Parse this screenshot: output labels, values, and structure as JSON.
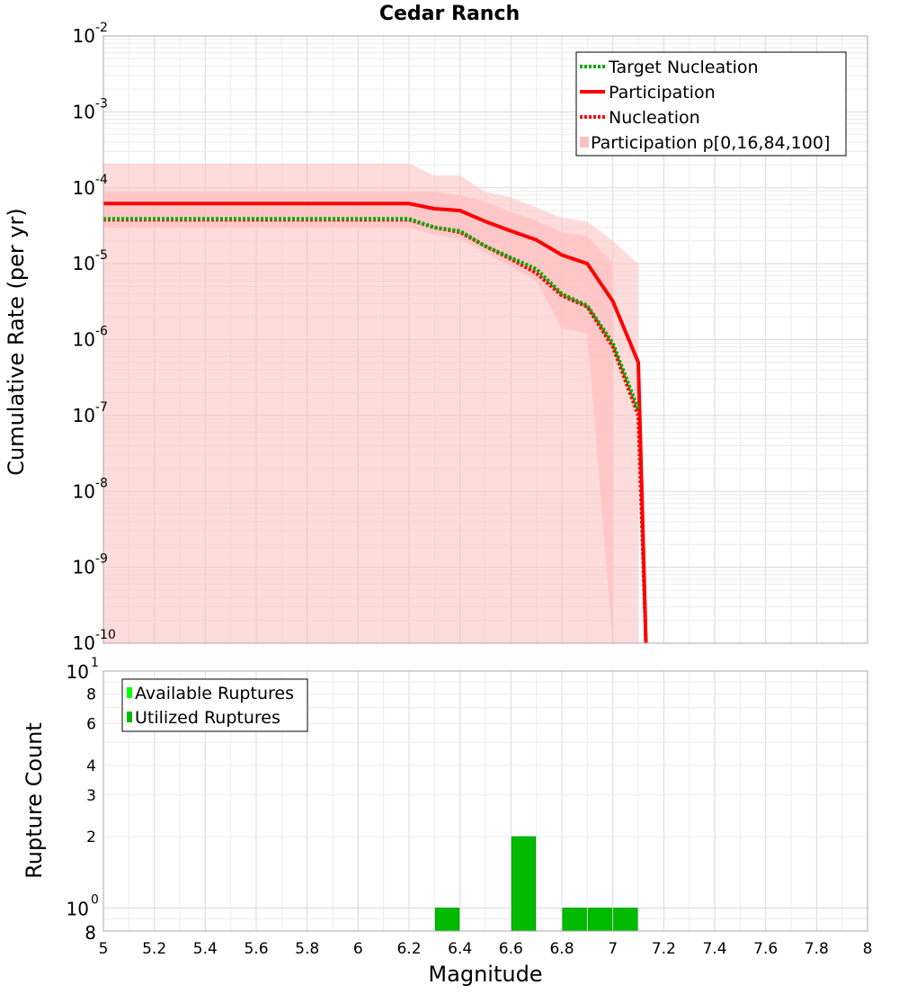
{
  "chart_data": [
    {
      "type": "line",
      "title": "Cedar Ranch",
      "ylabel": "Cumulative Rate (per yr)",
      "xlim": [
        5,
        8
      ],
      "ylim": [
        1e-10,
        0.01
      ],
      "yscale": "log",
      "grid": true,
      "legend_position": "top-right",
      "y_tick_exponents": [
        "-2",
        "-3",
        "-4",
        "-5",
        "-6",
        "-7",
        "-8",
        "-9",
        "-10"
      ],
      "y_tick_base": "10",
      "series": [
        {
          "name": "Target Nucleation",
          "color": "#00aa00",
          "style": "dotted",
          "x": [
            5.0,
            5.1,
            6.2,
            6.3,
            6.4,
            6.5,
            6.6,
            6.7,
            6.8,
            6.9,
            7.0,
            7.1
          ],
          "y": [
            3.9e-05,
            3.9e-05,
            3.9e-05,
            3e-05,
            2.7e-05,
            1.7e-05,
            1.2e-05,
            8.5e-06,
            4e-06,
            2.8e-06,
            9e-07,
            1.2e-07
          ]
        },
        {
          "name": "Participation",
          "color": "#ff0000",
          "style": "solid",
          "x": [
            5.0,
            5.1,
            6.2,
            6.3,
            6.4,
            6.5,
            6.6,
            6.7,
            6.8,
            6.9,
            7.0,
            7.1,
            7.13
          ],
          "y": [
            6.2e-05,
            6.2e-05,
            6.2e-05,
            5.3e-05,
            5e-05,
            3.6e-05,
            2.7e-05,
            2.05e-05,
            1.3e-05,
            1e-05,
            3.2e-06,
            5e-07,
            1e-10
          ]
        },
        {
          "name": "Nucleation",
          "color": "#ff0000",
          "style": "dotted",
          "x": [
            5.0,
            5.1,
            6.2,
            6.3,
            6.4,
            6.5,
            6.6,
            6.7,
            6.8,
            6.9,
            7.0,
            7.1,
            7.13
          ],
          "y": [
            3.8e-05,
            3.8e-05,
            3.8e-05,
            3e-05,
            2.6e-05,
            1.7e-05,
            1.15e-05,
            7.5e-06,
            3.8e-06,
            2.7e-06,
            8e-07,
            1e-07,
            1e-10
          ]
        }
      ],
      "bands": [
        {
          "name": "Participation p[0,16,84,100]",
          "color": "#ffc0c0",
          "x": [
            5.0,
            6.2,
            6.3,
            6.4,
            6.5,
            6.6,
            6.7,
            6.8,
            6.9,
            7.0,
            7.1
          ],
          "outer_upper": [
            0.00021,
            0.00021,
            0.000145,
            0.000145,
            8.8e-05,
            7.5e-05,
            5.5e-05,
            4e-05,
            3.6e-05,
            2e-05,
            1e-05
          ],
          "outer_lower": [
            1e-10,
            1e-10,
            1e-10,
            1e-10,
            1e-10,
            1e-10,
            1e-10,
            1e-10,
            1e-10,
            1e-10,
            1e-10
          ],
          "inner_upper": [
            8.8e-05,
            8.8e-05,
            8.8e-05,
            8e-05,
            6.5e-05,
            4.8e-05,
            3.7e-05,
            2.6e-05,
            2.3e-05,
            1e-05,
            null
          ],
          "inner_lower": [
            3e-05,
            3e-05,
            2.4e-05,
            2.1e-05,
            1.4e-05,
            9e-06,
            6e-06,
            1.4e-06,
            1.2e-06,
            1e-10,
            null
          ]
        }
      ]
    },
    {
      "type": "bar",
      "xlabel": "Magnitude",
      "ylabel": "Rupture Count",
      "xlim": [
        5,
        8
      ],
      "ylim": [
        0.8,
        10
      ],
      "yscale": "log",
      "grid": true,
      "legend_position": "top-left",
      "x_ticks": [
        "5",
        "5.2",
        "5.4",
        "5.6",
        "5.8",
        "6",
        "6.2",
        "6.4",
        "6.6",
        "6.8",
        "7",
        "7.2",
        "7.4",
        "7.6",
        "7.8",
        "8"
      ],
      "y_ticks_minor": [
        {
          "value": 8,
          "label": "8"
        },
        {
          "value": 6,
          "label": "6"
        },
        {
          "value": 4,
          "label": "4"
        },
        {
          "value": 3,
          "label": "3"
        },
        {
          "value": 2,
          "label": "2"
        }
      ],
      "y_ticks_major": [
        {
          "value": 10,
          "base": "10",
          "exp": "1"
        },
        {
          "value": 1,
          "base": "10",
          "exp": "0"
        }
      ],
      "y_bottom_label": "8",
      "bin_width": 0.1,
      "series": [
        {
          "name": "Available Ruptures",
          "color": "#00ff00"
        },
        {
          "name": "Utilized Ruptures",
          "color": "#00bb00"
        }
      ],
      "bars": [
        {
          "x": 6.35,
          "value": 1
        },
        {
          "x": 6.65,
          "value": 2
        },
        {
          "x": 6.85,
          "value": 1
        },
        {
          "x": 6.95,
          "value": 1
        },
        {
          "x": 7.05,
          "value": 1
        }
      ]
    }
  ]
}
